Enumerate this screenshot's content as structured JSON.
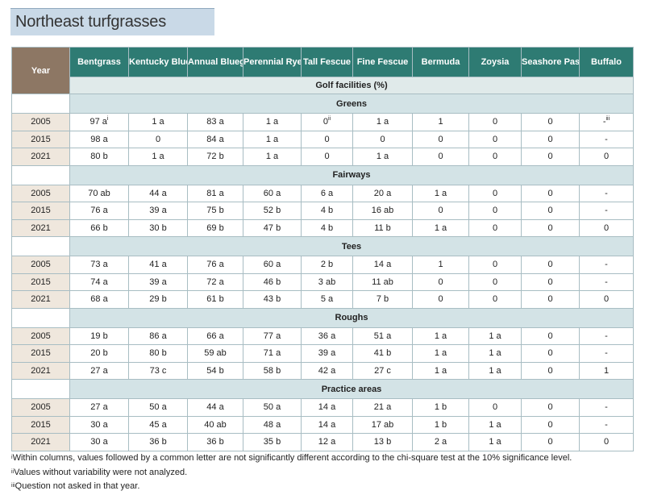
{
  "title": "Northeast turfgrasses",
  "year_header": "Year",
  "subheader": "Golf facilities (%)",
  "columns": [
    "Bentgrass",
    "Kentucky Bluegrass",
    "Annual Bluegrass",
    "Perennial Rye",
    "Tall Fescue",
    "Fine Fescue",
    "Bermuda",
    "Zoysia",
    "Seashore Paspalum",
    "Buffalo"
  ],
  "sections": [
    {
      "name": "Greens",
      "rows": [
        {
          "year": "2005",
          "cells": [
            "97 a",
            "1 a",
            "83 a",
            "1 a",
            "0",
            "1 a",
            "1",
            "0",
            "0",
            "-"
          ],
          "sups": [
            "i",
            "",
            "",
            "",
            "ii",
            "",
            "",
            "",
            "",
            "iii"
          ]
        },
        {
          "year": "2015",
          "cells": [
            "98 a",
            "0",
            "84 a",
            "1 a",
            "0",
            "0",
            "0",
            "0",
            "0",
            "-"
          ]
        },
        {
          "year": "2021",
          "cells": [
            "80 b",
            "1 a",
            "72 b",
            "1 a",
            "0",
            "1 a",
            "0",
            "0",
            "0",
            "0"
          ]
        }
      ]
    },
    {
      "name": "Fairways",
      "rows": [
        {
          "year": "2005",
          "cells": [
            "70 ab",
            "44 a",
            "81 a",
            "60 a",
            "6 a",
            "20 a",
            "1 a",
            "0",
            "0",
            "-"
          ]
        },
        {
          "year": "2015",
          "cells": [
            "76 a",
            "39 a",
            "75 b",
            "52 b",
            "4 b",
            "16 ab",
            "0",
            "0",
            "0",
            "-"
          ]
        },
        {
          "year": "2021",
          "cells": [
            "66 b",
            "30 b",
            "69 b",
            "47 b",
            "4 b",
            "11 b",
            "1 a",
            "0",
            "0",
            "0"
          ]
        }
      ]
    },
    {
      "name": "Tees",
      "rows": [
        {
          "year": "2005",
          "cells": [
            "73 a",
            "41 a",
            "76 a",
            "60 a",
            "2 b",
            "14 a",
            "1",
            "0",
            "0",
            "-"
          ]
        },
        {
          "year": "2015",
          "cells": [
            "74 a",
            "39 a",
            "72 a",
            "46 b",
            "3 ab",
            "11 ab",
            "0",
            "0",
            "0",
            "-"
          ]
        },
        {
          "year": "2021",
          "cells": [
            "68 a",
            "29 b",
            "61 b",
            "43 b",
            "5 a",
            "7 b",
            "0",
            "0",
            "0",
            "0"
          ]
        }
      ]
    },
    {
      "name": "Roughs",
      "rows": [
        {
          "year": "2005",
          "cells": [
            "19 b",
            "86 a",
            "66 a",
            "77 a",
            "36 a",
            "51 a",
            "1 a",
            "1 a",
            "0",
            "-"
          ]
        },
        {
          "year": "2015",
          "cells": [
            "20 b",
            "80 b",
            "59 ab",
            "71 a",
            "39 a",
            "41 b",
            "1 a",
            "1 a",
            "0",
            "-"
          ]
        },
        {
          "year": "2021",
          "cells": [
            "27 a",
            "73 c",
            "54 b",
            "58 b",
            "42 a",
            "27 c",
            "1 a",
            "1 a",
            "0",
            "1"
          ]
        }
      ]
    },
    {
      "name": "Practice areas",
      "rows": [
        {
          "year": "2005",
          "cells": [
            "27 a",
            "50 a",
            "44 a",
            "50 a",
            "14 a",
            "21 a",
            "1 b",
            "0",
            "0",
            "-"
          ]
        },
        {
          "year": "2015",
          "cells": [
            "30 a",
            "45 a",
            "40 ab",
            "48 a",
            "14 a",
            "17 ab",
            "1 b",
            "1 a",
            "0",
            "-"
          ]
        },
        {
          "year": "2021",
          "cells": [
            "30 a",
            "36 b",
            "36 b",
            "35 b",
            "12 a",
            "13 b",
            "2 a",
            "1 a",
            "0",
            "0"
          ]
        }
      ]
    }
  ],
  "footnotes": [
    {
      "mark": "i",
      "text": "Within columns, values followed by a common letter are not significantly different according to the chi-square test at the 10% significance level."
    },
    {
      "mark": "ii",
      "text": "Values without variability were not analyzed."
    },
    {
      "mark": "iii",
      "text": "Question not asked in that year."
    }
  ],
  "colors": {
    "header": "#2e7b73",
    "year_header": "#8d7764",
    "year_cell": "#efe7dd",
    "section": "#d3e3e6",
    "title_bg": "#c9d9e7"
  }
}
